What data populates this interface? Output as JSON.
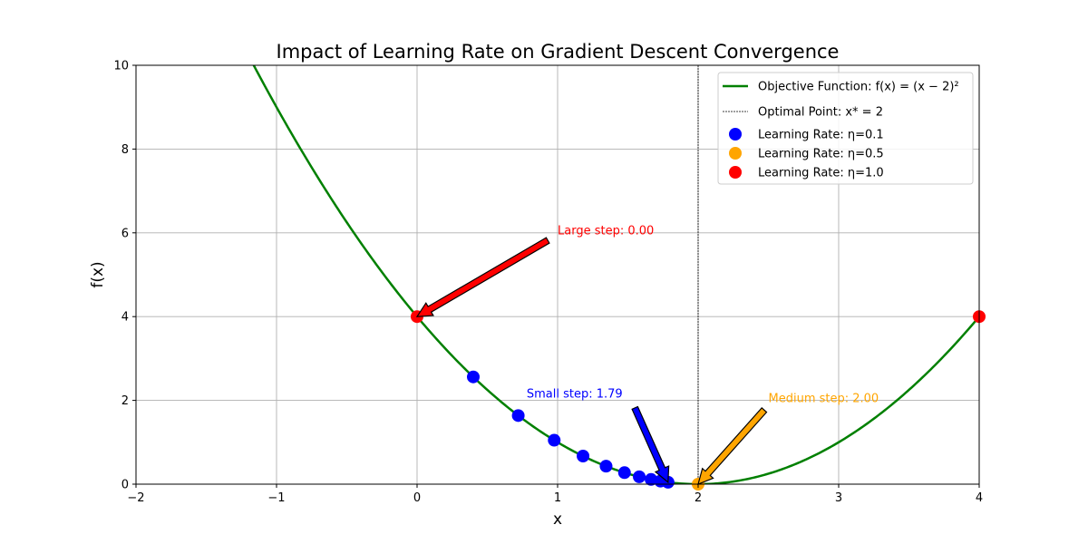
{
  "chart_data": {
    "type": "line",
    "title": "Impact of Learning Rate on Gradient Descent Convergence",
    "xlabel": "x",
    "ylabel": "f(x)",
    "xlim": [
      -2,
      4
    ],
    "ylim": [
      0,
      10
    ],
    "xticks": [
      -2,
      -1,
      0,
      1,
      2,
      3,
      4
    ],
    "xtick_labels": [
      "−2",
      "−1",
      "0",
      "1",
      "2",
      "3",
      "4"
    ],
    "yticks": [
      0,
      2,
      4,
      6,
      8,
      10
    ],
    "ytick_labels": [
      "0",
      "2",
      "4",
      "6",
      "8",
      "10"
    ],
    "grid": true,
    "legend_position": "top-right",
    "curve": {
      "name": "Objective Function: f(x) = (x − 2)²",
      "color": "#008000",
      "formula": "(x-2)^2"
    },
    "optimal_line": {
      "name": "Optimal Point: x* = 2",
      "x": 2,
      "color": "#000000"
    },
    "series": [
      {
        "name": "Learning Rate: η=0.1",
        "color": "#0000ff",
        "x": [
          0.4,
          0.72,
          0.976,
          1.181,
          1.345,
          1.476,
          1.581,
          1.665,
          1.732,
          1.786
        ],
        "y": [
          2.56,
          1.638,
          1.049,
          0.671,
          0.429,
          0.275,
          0.176,
          0.113,
          0.072,
          0.046
        ]
      },
      {
        "name": "Learning Rate: η=0.5",
        "color": "#ffa500",
        "x": [
          2.0
        ],
        "y": [
          0.0
        ]
      },
      {
        "name": "Learning Rate: η=1.0",
        "color": "#ff0000",
        "x": [
          0.0,
          4.0
        ],
        "y": [
          4.0,
          4.0
        ]
      }
    ],
    "annotations": [
      {
        "text": "Small step: 1.79",
        "color": "#0000ff",
        "text_at": [
          0.78,
          2.15
        ],
        "tail": [
          1.55,
          1.82
        ],
        "head": [
          1.786,
          0.046
        ]
      },
      {
        "text": "Medium step: 2.00",
        "color": "#ffa500",
        "text_at": [
          2.5,
          2.05
        ],
        "tail": [
          2.47,
          1.77
        ],
        "head": [
          2.0,
          0.0
        ]
      },
      {
        "text": "Large step: 0.00",
        "color": "#ff0000",
        "text_at": [
          1.0,
          6.05
        ],
        "tail": [
          0.93,
          5.82
        ],
        "head": [
          0.0,
          4.0
        ]
      }
    ]
  }
}
